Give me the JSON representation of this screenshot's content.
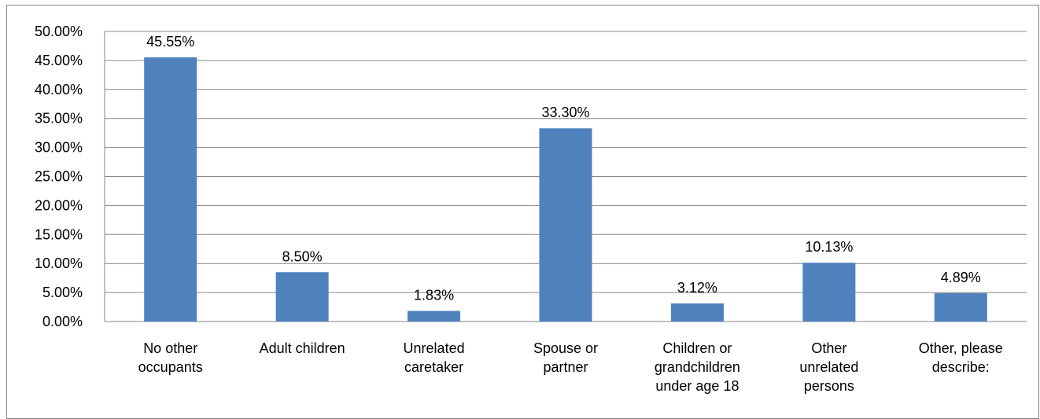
{
  "chart_data": {
    "type": "bar",
    "categories": [
      "No other occupants",
      "Adult children",
      "Unrelated caretaker",
      "Spouse or partner",
      "Children or grandchildren under age 18",
      "Other unrelated persons",
      "Other, please describe:"
    ],
    "values": [
      45.55,
      8.5,
      1.83,
      33.3,
      3.12,
      10.13,
      4.89
    ],
    "value_labels": [
      "45.55%",
      "8.50%",
      "1.83%",
      "33.30%",
      "3.12%",
      "10.13%",
      "4.89%"
    ],
    "color": "#4f81bd",
    "ylim": [
      0,
      50
    ],
    "yticks": [
      {
        "value": 0,
        "label": "0.00%"
      },
      {
        "value": 5,
        "label": "5.00%"
      },
      {
        "value": 10,
        "label": "10.00%"
      },
      {
        "value": 15,
        "label": "15.00%"
      },
      {
        "value": 20,
        "label": "20.00%"
      },
      {
        "value": 25,
        "label": "25.00%"
      },
      {
        "value": 30,
        "label": "30.00%"
      },
      {
        "value": 35,
        "label": "35.00%"
      },
      {
        "value": 40,
        "label": "40.00%"
      },
      {
        "value": 45,
        "label": "45.00%"
      },
      {
        "value": 50,
        "label": "50.00%"
      }
    ],
    "grid": true
  }
}
